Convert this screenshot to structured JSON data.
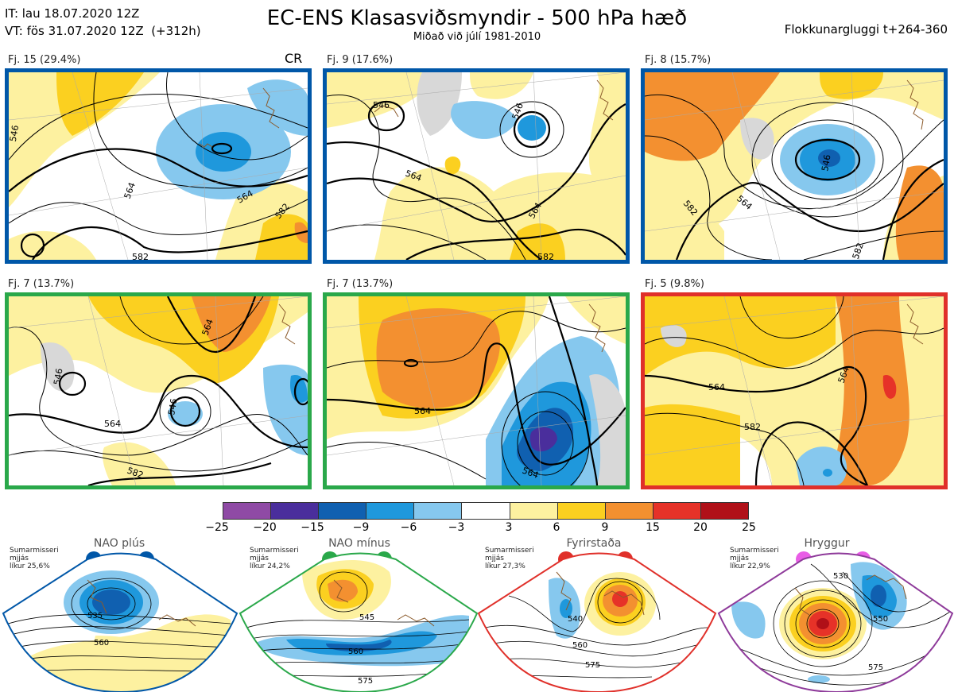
{
  "header": {
    "it_line": "IT: lau 18.07.2020 12Z",
    "vt_line": "VT: fös 31.07.2020 12Z  (+312h)",
    "title": "EC-ENS Klasasviðsmyndir - 500 hPa hæð",
    "subtitle": "Miðað við júlí 1981-2010",
    "window": "Flokkunargluggi t+264-360"
  },
  "panels": [
    {
      "label": "Fj. 15 (29.4%)",
      "tag": "CR",
      "border_color": "#0057a8",
      "contours": [
        "564",
        "564",
        "582",
        "582",
        "546"
      ]
    },
    {
      "label": "Fj. 9 (17.6%)",
      "tag": "",
      "border_color": "#0057a8",
      "contours": [
        "546",
        "546",
        "564",
        "564",
        "582"
      ]
    },
    {
      "label": "Fj. 8 (15.7%)",
      "tag": "",
      "border_color": "#0057a8",
      "contours": [
        "546",
        "564",
        "582",
        "582"
      ]
    },
    {
      "label": "Fj. 7 (13.7%)",
      "tag": "",
      "border_color": "#2aa84a",
      "contours": [
        "546",
        "546",
        "564",
        "564",
        "582"
      ]
    },
    {
      "label": "Fj. 7 (13.7%)",
      "tag": "",
      "border_color": "#2aa84a",
      "contours": [
        "564",
        "564"
      ]
    },
    {
      "label": "Fj. 5 (9.8%)",
      "tag": "",
      "border_color": "#e0302a",
      "contours": [
        "564",
        "564",
        "582"
      ]
    }
  ],
  "colorbar": {
    "colors": [
      "#8f4aa5",
      "#4a2e9c",
      "#1060b0",
      "#1f98dc",
      "#86c8ee",
      "#ffffff",
      "#fdf1a0",
      "#fbd020",
      "#f39030",
      "#e63228",
      "#b01018"
    ],
    "ticks": [
      "−25",
      "−20",
      "−15",
      "−9",
      "−6",
      "−3",
      "3",
      "6",
      "9",
      "15",
      "20",
      "25"
    ]
  },
  "regimes": [
    {
      "name": "NAO plús",
      "note": "Sumarmisseri\nmjjás\nlíkur 25,6%",
      "color": "#0057a8",
      "labels": [
        "535",
        "560"
      ]
    },
    {
      "name": "NAO mínus",
      "note": "Sumarmisseri\nmjjás\nlíkur 24,2%",
      "color": "#2aa84a",
      "labels": [
        "545",
        "560",
        "575"
      ]
    },
    {
      "name": "Fyrirstaða",
      "note": "Sumarmisseri\nmjjás\nlíkur 27,3%",
      "color": "#e0302a",
      "labels": [
        "540",
        "560",
        "575"
      ]
    },
    {
      "name": "Hryggur",
      "note": "Sumarmisseri\nmjjás\nlíkur 22,9%",
      "color": "#8e3a9a",
      "labels": [
        "530",
        "550",
        "575"
      ]
    }
  ]
}
